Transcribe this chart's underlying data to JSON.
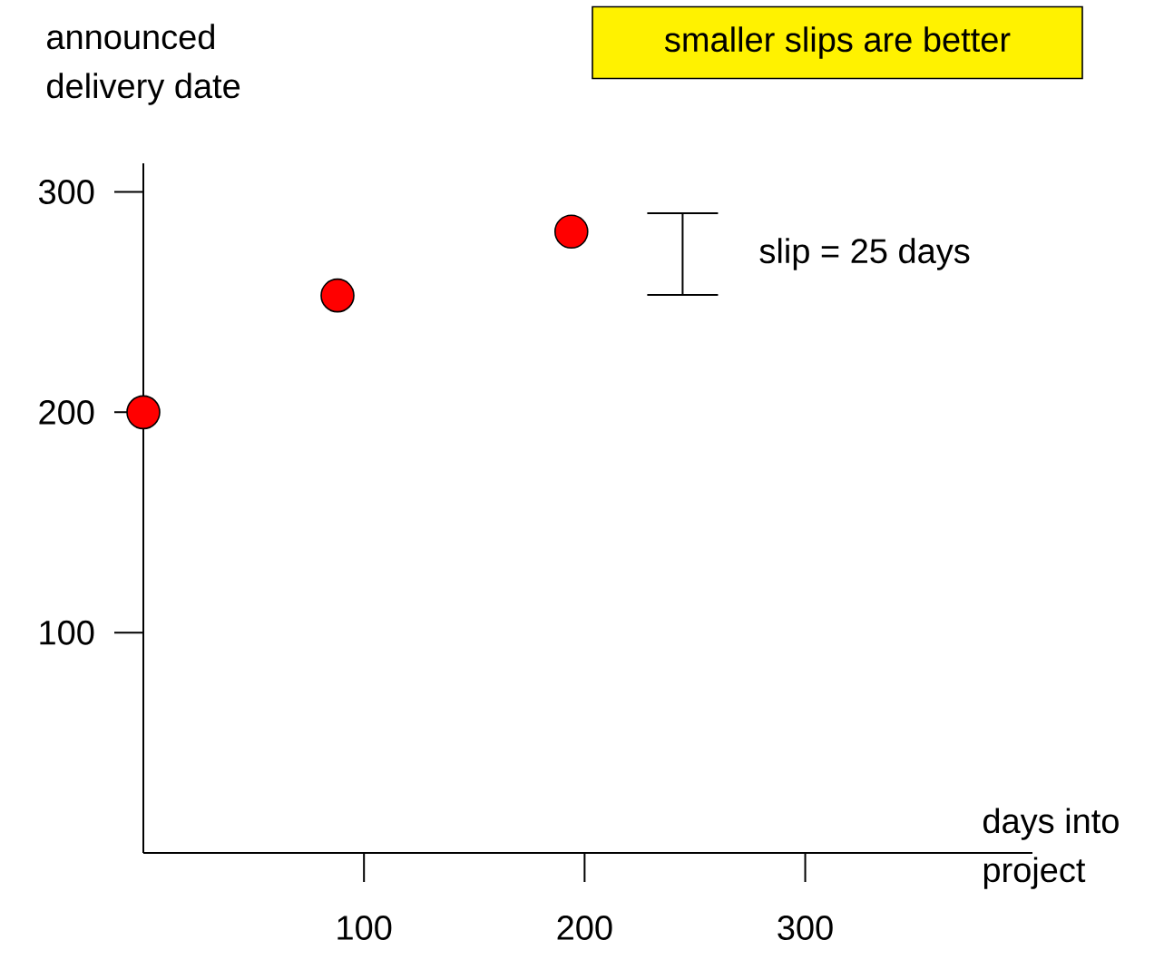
{
  "chart_data": {
    "type": "scatter",
    "xlabel": "days into project",
    "ylabel": "announced delivery date",
    "x": [
      0,
      88,
      194
    ],
    "values": [
      200,
      253,
      282
    ],
    "color": "#ff0000",
    "marker": "circle",
    "xlim": [
      0,
      403
    ],
    "ylim": [
      0,
      313
    ],
    "xticks": [
      100,
      200,
      300
    ],
    "yticks": [
      100,
      200,
      300
    ],
    "annotations": [
      "smaller slips are better",
      "slip = 25 days"
    ]
  }
}
